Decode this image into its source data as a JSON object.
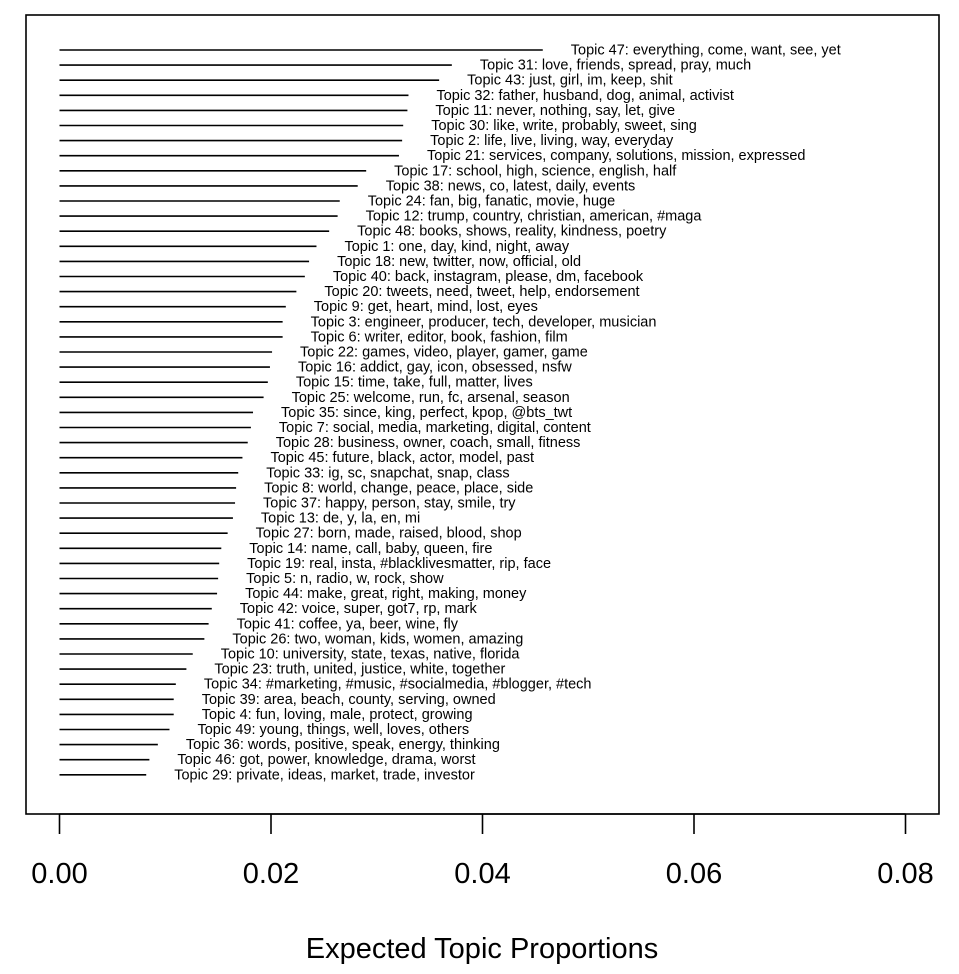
{
  "chart_data": {
    "type": "bar",
    "orientation": "horizontal",
    "xlabel": "Expected Topic Proportions",
    "xlim": [
      0.0,
      0.08
    ],
    "x_ticks": [
      0.0,
      0.02,
      0.04,
      0.06,
      0.08
    ],
    "x_tick_labels": [
      "0.00",
      "0.02",
      "0.04",
      "0.06",
      "0.08"
    ],
    "grid": false,
    "color": "#000000",
    "bars": [
      {
        "label": "Topic 47: everything, come, want, see, yet",
        "value": 0.0457
      },
      {
        "label": "Topic 31: love, friends, spread, pray, much",
        "value": 0.0371
      },
      {
        "label": "Topic 43: just, girl, im, keep, shit",
        "value": 0.0359
      },
      {
        "label": "Topic 32: father, husband, dog, animal, activist",
        "value": 0.033
      },
      {
        "label": "Topic 11: never, nothing, say, let, give",
        "value": 0.0329
      },
      {
        "label": "Topic 30: like, write, probably, sweet, sing",
        "value": 0.0325
      },
      {
        "label": "Topic 2: life, live, living, way, everyday",
        "value": 0.0324
      },
      {
        "label": "Topic 21: services, company, solutions, mission, expressed",
        "value": 0.0321
      },
      {
        "label": "Topic 17: school, high, science, english, half",
        "value": 0.029
      },
      {
        "label": "Topic 38: news, co, latest, daily, events",
        "value": 0.0282
      },
      {
        "label": "Topic 24: fan, big, fanatic, movie, huge",
        "value": 0.0265
      },
      {
        "label": "Topic 12: trump, country, christian, american, #maga",
        "value": 0.0263
      },
      {
        "label": "Topic 48: books, shows, reality, kindness, poetry",
        "value": 0.0255
      },
      {
        "label": "Topic 1: one, day, kind, night, away",
        "value": 0.0243
      },
      {
        "label": "Topic 18: new, twitter, now, official, old",
        "value": 0.0236
      },
      {
        "label": "Topic 40: back, instagram, please, dm, facebook",
        "value": 0.0232
      },
      {
        "label": "Topic 20: tweets, need, tweet, help, endorsement",
        "value": 0.0224
      },
      {
        "label": "Topic 9: get, heart, mind, lost, eyes",
        "value": 0.0214
      },
      {
        "label": "Topic 3: engineer, producer, tech, developer, musician",
        "value": 0.0211
      },
      {
        "label": "Topic 6: writer, editor, book, fashion, film",
        "value": 0.0211
      },
      {
        "label": "Topic 22: games, video, player, gamer, game",
        "value": 0.0201
      },
      {
        "label": "Topic 16: addict, gay, icon, obsessed, nsfw",
        "value": 0.0199
      },
      {
        "label": "Topic 15: time, take, full, matter, lives",
        "value": 0.0197
      },
      {
        "label": "Topic 25: welcome, run, fc, arsenal, season",
        "value": 0.0193
      },
      {
        "label": "Topic 35: since, king, perfect, kpop, @bts_twt",
        "value": 0.0183
      },
      {
        "label": "Topic 7: social, media, marketing, digital, content",
        "value": 0.0181
      },
      {
        "label": "Topic 28: business, owner, coach, small, fitness",
        "value": 0.0178
      },
      {
        "label": "Topic 45: future, black, actor, model, past",
        "value": 0.0173
      },
      {
        "label": "Topic 33: ig, sc, snapchat, snap, class",
        "value": 0.0169
      },
      {
        "label": "Topic 8: world, change, peace, place, side",
        "value": 0.0167
      },
      {
        "label": "Topic 37: happy, person, stay, smile, try",
        "value": 0.0166
      },
      {
        "label": "Topic 13: de, y, la, en, mi",
        "value": 0.0164
      },
      {
        "label": "Topic 27: born, made, raised, blood, shop",
        "value": 0.0159
      },
      {
        "label": "Topic 14: name, call, baby, queen, fire",
        "value": 0.0153
      },
      {
        "label": "Topic 19: real, insta, #blacklivesmatter, rip, face",
        "value": 0.0151
      },
      {
        "label": "Topic 5: n, radio, w, rock, show",
        "value": 0.015
      },
      {
        "label": "Topic 44: make, great, right, making, money",
        "value": 0.0149
      },
      {
        "label": "Topic 42: voice, super, got7, rp, mark",
        "value": 0.0144
      },
      {
        "label": "Topic 41: coffee, ya, beer, wine, fly",
        "value": 0.0141
      },
      {
        "label": "Topic 26: two, woman, kids, women, amazing",
        "value": 0.0137
      },
      {
        "label": "Topic 10: university, state, texas, native, florida",
        "value": 0.0126
      },
      {
        "label": "Topic 23: truth, united, justice, white, together",
        "value": 0.012
      },
      {
        "label": "Topic 34: #marketing, #music, #socialmedia, #blogger, #tech",
        "value": 0.011
      },
      {
        "label": "Topic 39: area, beach, county, serving, owned",
        "value": 0.0108
      },
      {
        "label": "Topic 4: fun, loving, male, protect, growing",
        "value": 0.0108
      },
      {
        "label": "Topic 49: young, things, well, loves, others",
        "value": 0.0104
      },
      {
        "label": "Topic 36: words, positive, speak, energy, thinking",
        "value": 0.0093
      },
      {
        "label": "Topic 46: got, power, knowledge, drama, worst",
        "value": 0.0085
      },
      {
        "label": "Topic 29: private, ideas, market, trade, investor",
        "value": 0.0082
      }
    ]
  }
}
